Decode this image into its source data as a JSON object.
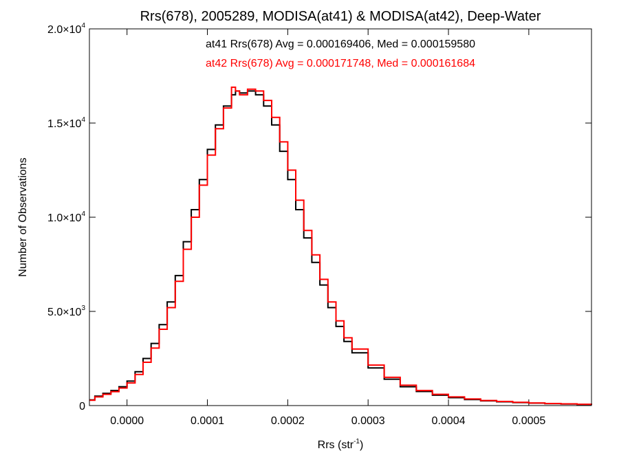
{
  "chart_data": {
    "type": "line",
    "title": "Rrs(678), 2005289, MODISA(at41) & MODISA(at42), Deep-Water",
    "xlabel": {
      "main": "Rrs (str",
      "sup": "-1",
      "tail": ")"
    },
    "ylabel": "Number of Observations",
    "xlim": [
      -4.68e-05,
      0.000578
    ],
    "ylim": [
      0,
      20000
    ],
    "x_ticks": [
      {
        "value": 0.0,
        "label": "0.0000"
      },
      {
        "value": 0.0001,
        "label": "0.0001"
      },
      {
        "value": 0.0002,
        "label": "0.0002"
      },
      {
        "value": 0.0003,
        "label": "0.0003"
      },
      {
        "value": 0.0004,
        "label": "0.0004"
      },
      {
        "value": 0.0005,
        "label": "0.0005"
      }
    ],
    "y_ticks": [
      {
        "value": 0,
        "mantissa": "0",
        "times": "",
        "base": "",
        "exp": ""
      },
      {
        "value": 5000,
        "mantissa": "5.0",
        "times": "×",
        "base": "10",
        "exp": "3"
      },
      {
        "value": 10000,
        "mantissa": "1.0",
        "times": "×",
        "base": "10",
        "exp": "4"
      },
      {
        "value": 15000,
        "mantissa": "1.5",
        "times": "×",
        "base": "10",
        "exp": "4"
      },
      {
        "value": 20000,
        "mantissa": "2.0",
        "times": "×",
        "base": "10",
        "exp": "4"
      }
    ],
    "annotations": [
      {
        "text": "at41 Rrs(678) Avg = 0.000169406, Med = 0.000159580",
        "color": "#000000"
      },
      {
        "text": "at42 Rrs(678) Avg = 0.000171748, Med = 0.000161684",
        "color": "#ff0000"
      }
    ],
    "series": [
      {
        "name": "at41",
        "color": "#000000",
        "x": [
          -4.68e-05,
          -4e-05,
          -3e-05,
          -2e-05,
          -1e-05,
          0.0,
          1e-05,
          2e-05,
          3e-05,
          4e-05,
          5e-05,
          6e-05,
          7e-05,
          8e-05,
          9e-05,
          0.0001,
          0.00011,
          0.00012,
          0.00013,
          0.000135,
          0.00014,
          0.00015,
          0.00016,
          0.00017,
          0.00018,
          0.00019,
          0.0002,
          0.00021,
          0.00022,
          0.00023,
          0.00024,
          0.00025,
          0.00026,
          0.00027,
          0.00028,
          0.0003,
          0.00032,
          0.00034,
          0.00036,
          0.00038,
          0.0004,
          0.00042,
          0.00044,
          0.00046,
          0.00048,
          0.0005,
          0.00052,
          0.00054,
          0.00056,
          0.000578
        ],
        "y": [
          300,
          500,
          650,
          800,
          1000,
          1300,
          1800,
          2500,
          3300,
          4300,
          5500,
          6900,
          8700,
          10400,
          12000,
          13600,
          14900,
          15900,
          16500,
          16700,
          16600,
          16700,
          16500,
          15900,
          14900,
          13500,
          12000,
          10400,
          8900,
          7600,
          6400,
          5200,
          4200,
          3400,
          2800,
          2000,
          1400,
          1000,
          750,
          550,
          420,
          320,
          250,
          200,
          160,
          130,
          100,
          80,
          60,
          40
        ]
      },
      {
        "name": "at42",
        "color": "#ff0000",
        "x": [
          -4.68e-05,
          -4e-05,
          -3e-05,
          -2e-05,
          -1e-05,
          0.0,
          1e-05,
          2e-05,
          3e-05,
          4e-05,
          5e-05,
          6e-05,
          7e-05,
          8e-05,
          9e-05,
          0.0001,
          0.00011,
          0.00012,
          0.00013,
          0.000135,
          0.00014,
          0.00015,
          0.00016,
          0.00017,
          0.00018,
          0.00019,
          0.0002,
          0.00021,
          0.00022,
          0.00023,
          0.00024,
          0.00025,
          0.00026,
          0.00027,
          0.00028,
          0.0003,
          0.00032,
          0.00034,
          0.00036,
          0.00038,
          0.0004,
          0.00042,
          0.00044,
          0.00046,
          0.00048,
          0.0005,
          0.00052,
          0.00054,
          0.00056,
          0.000578
        ],
        "y": [
          280,
          460,
          600,
          740,
          930,
          1200,
          1650,
          2300,
          3050,
          4050,
          5200,
          6600,
          8300,
          10000,
          11700,
          13300,
          14700,
          15800,
          16900,
          16700,
          16500,
          16800,
          16700,
          16200,
          15300,
          14000,
          12500,
          10900,
          9300,
          8000,
          6700,
          5500,
          4500,
          3600,
          3000,
          2150,
          1500,
          1080,
          800,
          600,
          460,
          350,
          270,
          220,
          175,
          140,
          110,
          90,
          70,
          50
        ]
      }
    ]
  }
}
